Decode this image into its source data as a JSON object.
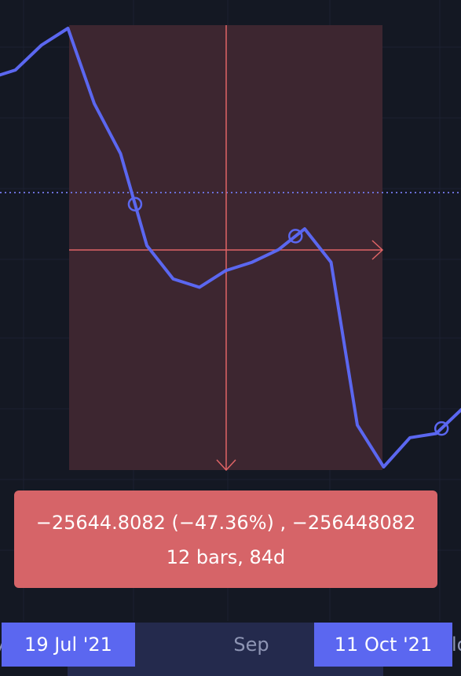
{
  "colors": {
    "background": "#141823",
    "line": "#5b67f0",
    "measure_region": "#3d2630",
    "measure_crosshair": "#e06466",
    "tooltip_bg": "#d66468",
    "date_label_bg": "#5b67f0",
    "axis_range_bg": "#242a4d"
  },
  "measure": {
    "line1": "−25644.8082 (−47.36%) , −256448082",
    "line2": "12 bars, 84d"
  },
  "time_axis": {
    "start_label": "19 Jul '21",
    "month_label": "Sep",
    "end_label": "11 Oct '21",
    "left_edge_text": "y",
    "right_edge_text": "lo"
  },
  "chart_data": {
    "type": "line",
    "title": "",
    "xlabel": "",
    "ylabel": "",
    "grid": true,
    "series": [
      {
        "values": [
          0.88,
          0.9,
          0.96,
          1.0,
          0.82,
          0.7,
          0.48,
          0.4,
          0.38,
          0.42,
          0.44,
          0.47,
          0.52,
          0.44,
          0.05,
          -0.05,
          0.02,
          0.03,
          0.09
        ]
      }
    ],
    "markers_at_index": [
      5,
      12,
      17
    ]
  }
}
